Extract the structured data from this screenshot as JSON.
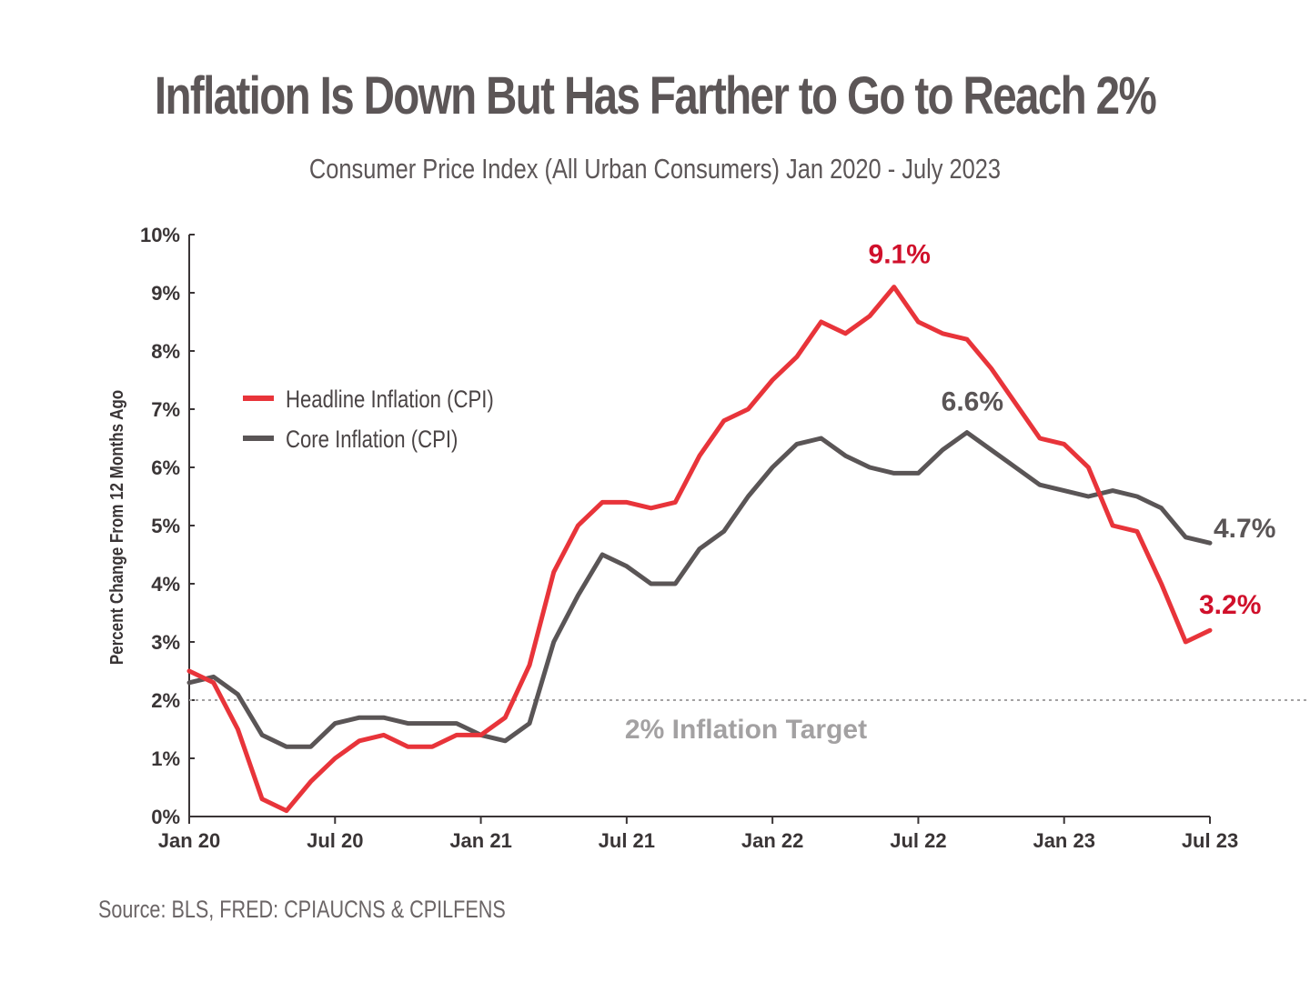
{
  "chart_data": {
    "type": "line",
    "title": "Inflation Is Down But Has Farther to Go to Reach 2%",
    "subtitle": "Consumer Price Index (All Urban Consumers) Jan 2020 - July 2023",
    "ylabel": "Percent Change From 12 Months Ago",
    "xlabel": "",
    "ylim": [
      0,
      10
    ],
    "yticks": [
      "0%",
      "1%",
      "2%",
      "3%",
      "4%",
      "5%",
      "6%",
      "7%",
      "8%",
      "9%",
      "10%"
    ],
    "xticks": [
      {
        "label": "Jan 20",
        "index": 0
      },
      {
        "label": "Jul 20",
        "index": 6
      },
      {
        "label": "Jan 21",
        "index": 12
      },
      {
        "label": "Jul 21",
        "index": 18
      },
      {
        "label": "Jan 22",
        "index": 24
      },
      {
        "label": "Jul 22",
        "index": 30
      },
      {
        "label": "Jan 23",
        "index": 36
      },
      {
        "label": "Jul 23",
        "index": 42
      }
    ],
    "x_months": [
      "Jan 2020",
      "Feb 2020",
      "Mar 2020",
      "Apr 2020",
      "May 2020",
      "Jun 2020",
      "Jul 2020",
      "Aug 2020",
      "Sep 2020",
      "Oct 2020",
      "Nov 2020",
      "Dec 2020",
      "Jan 2021",
      "Feb 2021",
      "Mar 2021",
      "Apr 2021",
      "May 2021",
      "Jun 2021",
      "Jul 2021",
      "Aug 2021",
      "Sep 2021",
      "Oct 2021",
      "Nov 2021",
      "Dec 2021",
      "Jan 2022",
      "Feb 2022",
      "Mar 2022",
      "Apr 2022",
      "May 2022",
      "Jun 2022",
      "Jul 2022",
      "Aug 2022",
      "Sep 2022",
      "Oct 2022",
      "Nov 2022",
      "Dec 2022",
      "Jan 2023",
      "Feb 2023",
      "Mar 2023",
      "Apr 2023",
      "May 2023",
      "Jun 2023",
      "Jul 2023"
    ],
    "series": [
      {
        "name": "Headline Inflation (CPI)",
        "color": "#e8343a",
        "values": [
          2.5,
          2.3,
          1.5,
          0.3,
          0.1,
          0.6,
          1.0,
          1.3,
          1.4,
          1.2,
          1.2,
          1.4,
          1.4,
          1.7,
          2.6,
          4.2,
          5.0,
          5.4,
          5.4,
          5.3,
          5.4,
          6.2,
          6.8,
          7.0,
          7.5,
          7.9,
          8.5,
          8.3,
          8.6,
          9.1,
          8.5,
          8.3,
          8.2,
          7.7,
          7.1,
          6.5,
          6.4,
          6.0,
          5.0,
          4.9,
          4.0,
          3.0,
          3.2
        ]
      },
      {
        "name": "Core Inflation (CPI)",
        "color": "#5a5556",
        "values": [
          2.3,
          2.4,
          2.1,
          1.4,
          1.2,
          1.2,
          1.6,
          1.7,
          1.7,
          1.6,
          1.6,
          1.6,
          1.4,
          1.3,
          1.6,
          3.0,
          3.8,
          4.5,
          4.3,
          4.0,
          4.0,
          4.6,
          4.9,
          5.5,
          6.0,
          6.4,
          6.5,
          6.2,
          6.0,
          5.9,
          5.9,
          6.3,
          6.6,
          6.3,
          6.0,
          5.7,
          5.6,
          5.5,
          5.6,
          5.5,
          5.3,
          4.8,
          4.7
        ]
      }
    ],
    "reference_line": {
      "value": 2,
      "label": "2% Inflation Target",
      "color": "#a3a1a2"
    },
    "annotations": [
      {
        "text": "9.1%",
        "series": 0,
        "index": 29,
        "color": "#d0102b"
      },
      {
        "text": "6.6%",
        "series": 1,
        "index": 32,
        "color": "#5a5556"
      },
      {
        "text": "4.7%",
        "series": 1,
        "index": 42,
        "color": "#5a5556"
      },
      {
        "text": "3.2%",
        "series": 0,
        "index": 42,
        "color": "#d0102b"
      }
    ],
    "legend_position": "upper-left",
    "grid": false
  },
  "source": "Source: BLS, FRED: CPIAUCNS & CPILFENS"
}
